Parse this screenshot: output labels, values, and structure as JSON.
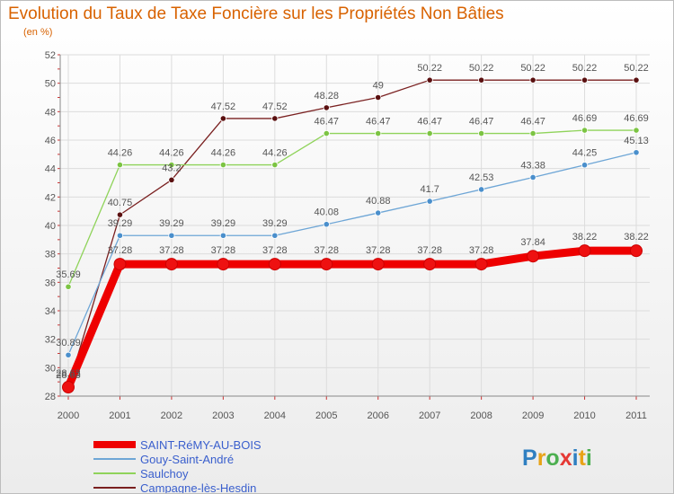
{
  "title": "Evolution du Taux de Taxe Foncière sur les Propriétés Non Bâties",
  "unit_label": "(en %)",
  "logo": {
    "letters": [
      "P",
      "r",
      "o",
      "x",
      "i",
      "t",
      "i"
    ],
    "colors": [
      "#2f7fc1",
      "#e8a317",
      "#4caf50",
      "#e53935",
      "#2f7fc1",
      "#e8a317",
      "#4caf50"
    ]
  },
  "chart_data": {
    "type": "line",
    "title": "Evolution du Taux de Taxe Foncière sur les Propriétés Non Bâties",
    "xlabel": "",
    "ylabel": "(en %)",
    "ylim": [
      28,
      52
    ],
    "yticks": [
      28,
      30,
      32,
      34,
      36,
      38,
      40,
      42,
      44,
      46,
      48,
      50,
      52
    ],
    "categories": [
      "2000",
      "2001",
      "2002",
      "2003",
      "2004",
      "2005",
      "2006",
      "2007",
      "2008",
      "2009",
      "2010",
      "2011"
    ],
    "grid": true,
    "legend_position": "bottom-left",
    "series": [
      {
        "name": "Campagne-lès-Hesdin",
        "color": "#7a2020",
        "point_color": "#5a1010",
        "values": [
          28.63,
          40.75,
          43.2,
          47.52,
          47.52,
          48.28,
          49,
          50.22,
          50.22,
          50.22,
          50.22,
          50.22
        ],
        "labels": [
          "28.63",
          "40.75",
          "43.2",
          "47.52",
          "47.52",
          "48.28",
          "49",
          "50.22",
          "50.22",
          "50.22",
          "50.22",
          "50.22"
        ]
      },
      {
        "name": "Saulchoy",
        "color": "#8fd35a",
        "point_color": "#7cc443",
        "values": [
          35.69,
          44.26,
          44.26,
          44.26,
          44.26,
          46.47,
          46.47,
          46.47,
          46.47,
          46.47,
          46.69,
          46.69
        ],
        "labels": [
          "35.69",
          "44.26",
          "44.26",
          "44.26",
          "44.26",
          "46.47",
          "46.47",
          "46.47",
          "46.47",
          "46.47",
          "46.69",
          "46.69"
        ]
      },
      {
        "name": "Gouy-Saint-André",
        "color": "#6ea6d6",
        "point_color": "#4a8fcc",
        "values": [
          30.89,
          39.29,
          39.29,
          39.29,
          39.29,
          40.08,
          40.88,
          41.7,
          42.53,
          43.38,
          44.25,
          45.13
        ],
        "labels": [
          "30.89",
          "39.29",
          "39.29",
          "39.29",
          "39.29",
          "40.08",
          "40.88",
          "41.7",
          "42.53",
          "43.38",
          "44.25",
          "45.13"
        ]
      },
      {
        "name": "SAINT-RéMY-AU-BOIS",
        "color": "#ee0000",
        "point_color": "#ee1111",
        "values": [
          28.63,
          37.28,
          37.28,
          37.28,
          37.28,
          37.28,
          37.28,
          37.28,
          37.28,
          37.84,
          38.22,
          38.22
        ],
        "labels": [
          "28.63",
          "37.28",
          "37.28",
          "37.28",
          "37.28",
          "37.28",
          "37.28",
          "37.28",
          "37.28",
          "37.84",
          "38.22",
          "38.22"
        ]
      }
    ],
    "legend_order": [
      "SAINT-RéMY-AU-BOIS",
      "Gouy-Saint-André",
      "Saulchoy",
      "Campagne-lès-Hesdin"
    ]
  }
}
